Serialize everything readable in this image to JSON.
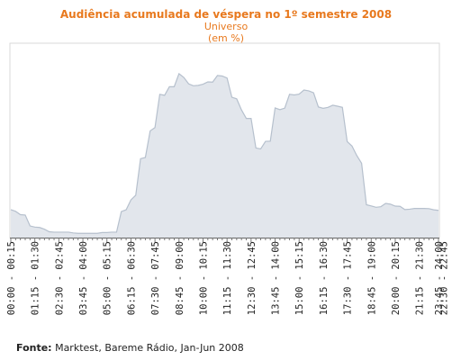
{
  "chart_data": {
    "type": "area",
    "title": "Audiência acumulada de véspera no 1º semestre 2008",
    "subtitle": [
      "Universo",
      "(em %)"
    ],
    "xlabel": "",
    "ylabel": "",
    "ylim": [
      0,
      100
    ],
    "grid": false,
    "legend": "none",
    "x_tick_labels": [
      "00:00 - 00:15",
      "01:15 - 01:30",
      "02:30 - 02:45",
      "03:45 - 04:00",
      "05:00 - 05:15",
      "06:15 - 06:30",
      "07:30 - 07:45",
      "08:45 - 09:00",
      "10:00 - 10:15",
      "11:15 - 11:30",
      "12:30 - 12:45",
      "13:45 - 14:00",
      "15:00 - 15:15",
      "16:15 - 16:30",
      "17:30 - 17:45",
      "18:45 - 19:00",
      "20:00 - 20:15",
      "21:15 - 21:30",
      "22:30 - 22:45",
      "23:45 - 24:00"
    ],
    "series": [
      {
        "values": [
          14.4,
          13.5,
          11.8,
          11.6,
          6.0,
          5.4,
          5.2,
          4.3,
          3.0,
          2.8,
          2.8,
          2.8,
          2.8,
          2.4,
          2.2,
          2.2,
          2.2,
          2.2,
          2.2,
          2.6,
          2.6,
          2.8,
          2.8,
          13.4,
          14.3,
          19.4,
          21.8,
          40.6,
          41.2,
          54.9,
          56.6,
          73.7,
          73.2,
          77.6,
          77.6,
          84.3,
          82.4,
          79.1,
          78.1,
          78.3,
          78.9,
          80.1,
          80.0,
          83.4,
          83.1,
          82.1,
          72.2,
          71.4,
          65.7,
          61.3,
          61.3,
          46.1,
          45.6,
          49.5,
          49.6,
          66.7,
          65.8,
          66.6,
          73.7,
          73.4,
          73.8,
          75.9,
          75.5,
          74.5,
          67.2,
          66.5,
          67.0,
          68.1,
          67.6,
          67.0,
          49.4,
          47.1,
          42.2,
          38.2,
          16.9,
          16.3,
          15.6,
          15.9,
          17.6,
          17.2,
          16.2,
          16.1,
          14.4,
          14.6,
          15.0,
          15.0,
          15.0,
          14.9,
          14.3,
          14.0
        ]
      }
    ],
    "colors": {
      "fill": "#e2e6ec",
      "line": "#b6c0cd",
      "title": "#e8791e"
    }
  },
  "footer": {
    "source_label": "Fonte:",
    "source_text": " Marktest, Bareme Rádio, Jan-Jun 2008"
  }
}
